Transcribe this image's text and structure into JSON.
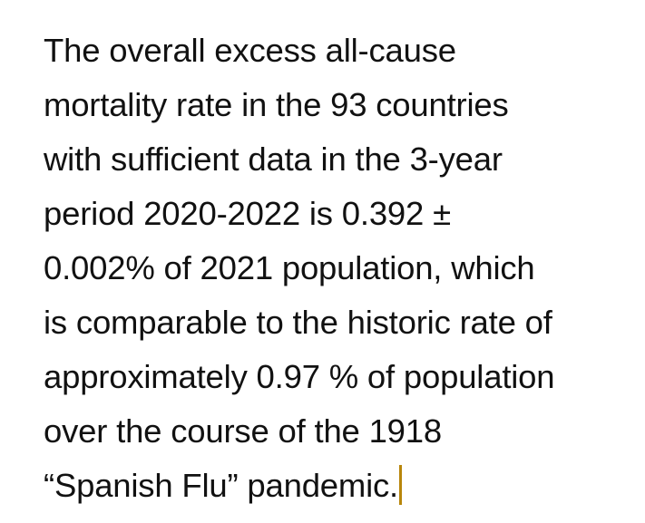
{
  "document": {
    "lines": [
      "The overall excess all-cause",
      "mortality rate in the 93 countries",
      "with sufficient data in the 3-year",
      "period 2020-2022 is 0.392 ±",
      "0.002% of 2021 population, which",
      "is comparable to the historic rate of",
      "approximately 0.97 % of population",
      "over the course of the 1918",
      "“Spanish Flu” pandemic."
    ]
  },
  "cursor": {
    "color": "#b8860b"
  }
}
